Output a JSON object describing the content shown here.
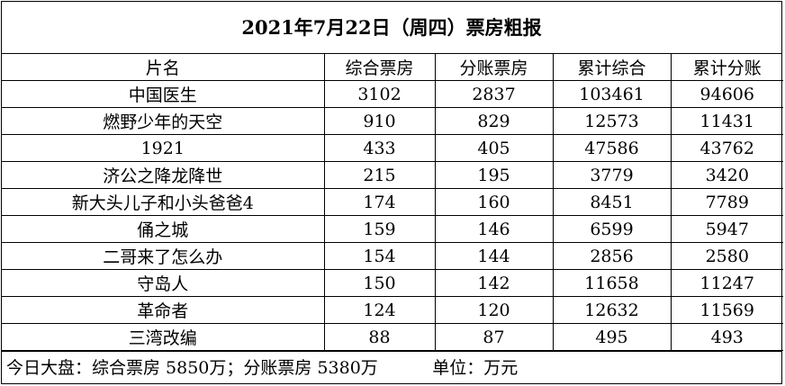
{
  "title": "2021年7月22日（周四）票房粗报",
  "columns": [
    "片名",
    "综合票房",
    "分账票房",
    "累计综合",
    "累计分账"
  ],
  "rows": [
    [
      "中国医生",
      "3102",
      "2837",
      "103461",
      "94606"
    ],
    [
      "燃野少年的天空",
      "910",
      "829",
      "12573",
      "11431"
    ],
    [
      "1921",
      "433",
      "405",
      "47586",
      "43762"
    ],
    [
      "济公之降龙降世",
      "215",
      "195",
      "3779",
      "3420"
    ],
    [
      "新大头儿子和小头爸爸4",
      "174",
      "160",
      "8451",
      "7789"
    ],
    [
      "俑之城",
      "159",
      "146",
      "6599",
      "5947"
    ],
    [
      "二哥来了怎么办",
      "154",
      "144",
      "2856",
      "2580"
    ],
    [
      "守岛人",
      "150",
      "142",
      "11658",
      "11247"
    ],
    [
      "革命者",
      "124",
      "120",
      "12632",
      "11569"
    ],
    [
      "三湾改编",
      "88",
      "87",
      "495",
      "493"
    ]
  ],
  "footer": {
    "total_label": "今日大盘：综合票房 5850万；分账票房 5380万",
    "unit_label": "单位：万元"
  }
}
